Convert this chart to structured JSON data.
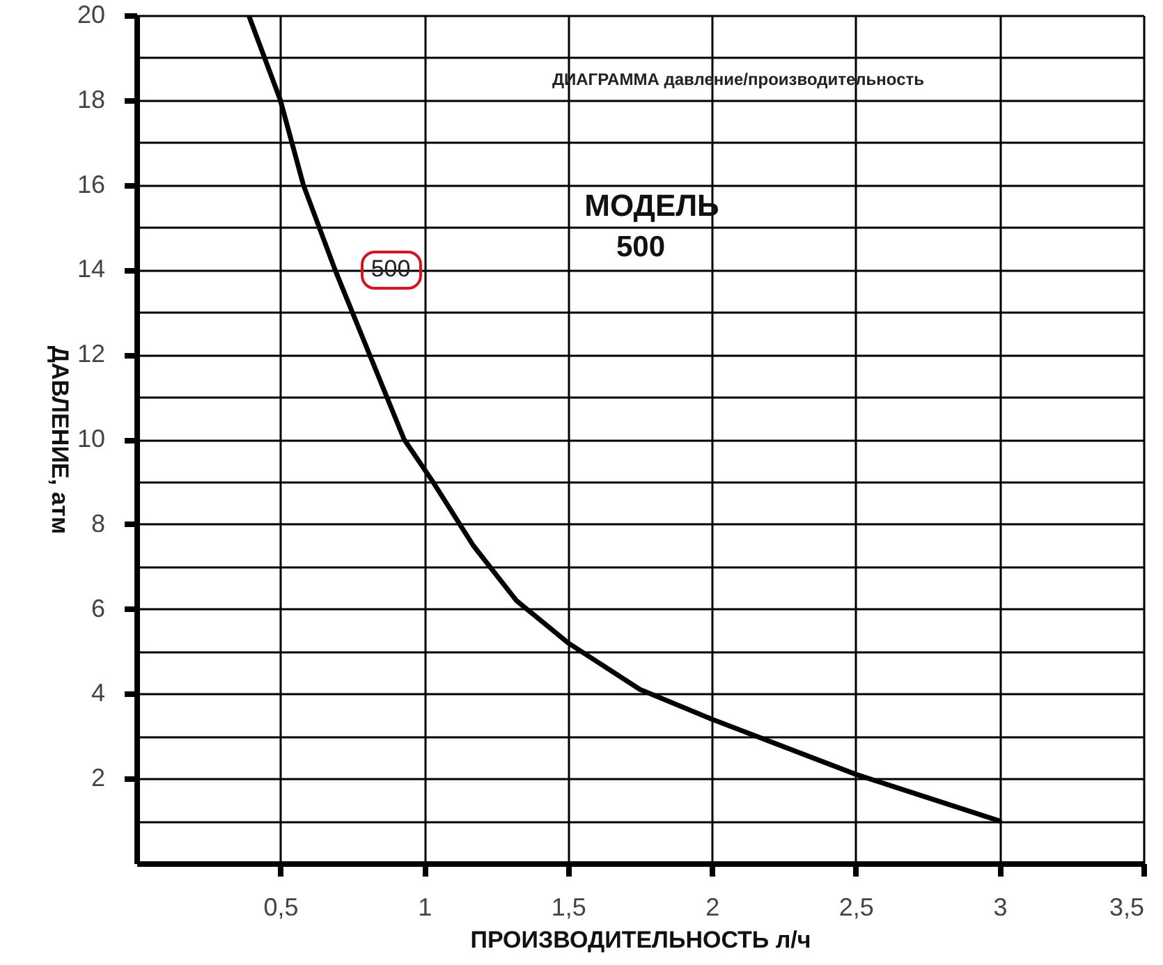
{
  "chart_data": {
    "type": "line",
    "title": "ДИАГРАММА давление/производительность",
    "xlabel": "ПРОИЗВОДИТЕЛЬНОСТЬ л/ч",
    "ylabel": "ДАВЛЕНИЕ, атм",
    "annotations": [
      "МОДЕЛЬ",
      "500"
    ],
    "xlim": [
      0,
      3.5
    ],
    "ylim": [
      0,
      20
    ],
    "xticks": [
      {
        "value": 0.5,
        "label": "0,5"
      },
      1,
      {
        "value": 1.5,
        "label": "1,5"
      },
      2,
      {
        "value": 2.5,
        "label": "2,5"
      },
      3,
      {
        "value": 3.5,
        "label": "3,5"
      }
    ],
    "yticks": [
      {
        "value": 1,
        "label": null
      },
      2,
      {
        "value": 3,
        "label": null
      },
      4,
      {
        "value": 5,
        "label": null
      },
      6,
      {
        "value": 7,
        "label": null
      },
      8,
      {
        "value": 9,
        "label": null
      },
      10,
      {
        "value": 11,
        "label": null
      },
      12,
      {
        "value": 13,
        "label": null
      },
      14,
      {
        "value": 15,
        "label": null
      },
      16,
      {
        "value": 17,
        "label": null
      },
      18,
      {
        "value": 19,
        "label": null
      },
      20
    ],
    "grid": true,
    "series": [
      {
        "name": "500",
        "color": "#000000",
        "x": [
          0.39,
          0.5,
          0.58,
          0.69,
          0.81,
          0.93,
          1.03,
          1.17,
          1.32,
          1.5,
          1.75,
          2,
          2.5,
          3
        ],
        "values": [
          20,
          18,
          16,
          14,
          12,
          10,
          9,
          7.5,
          6.2,
          5.2,
          4.1,
          3.4,
          2.1,
          1
        ]
      }
    ]
  }
}
